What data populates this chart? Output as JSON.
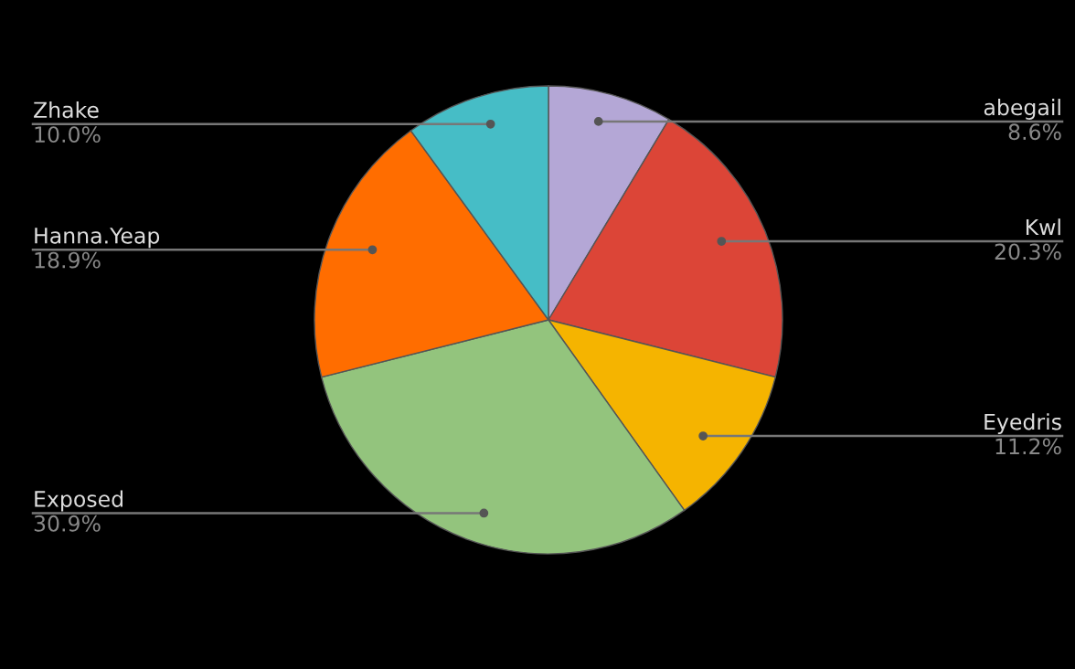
{
  "chart_data": {
    "type": "pie",
    "categories": [
      "abegail",
      "Kwl",
      "Eyedris",
      "Exposed",
      "Hanna.Yeap",
      "Zhake"
    ],
    "values": [
      8.6,
      20.3,
      11.2,
      30.9,
      18.9,
      10.0
    ],
    "value_labels": [
      "8.6%",
      "20.3%",
      "11.2%",
      "30.9%",
      "18.9%",
      "10.0%"
    ],
    "colors": [
      "#b4a7d6",
      "#dc4537",
      "#f5b400",
      "#93c47d",
      "#ff6d00",
      "#46bdc6"
    ]
  }
}
